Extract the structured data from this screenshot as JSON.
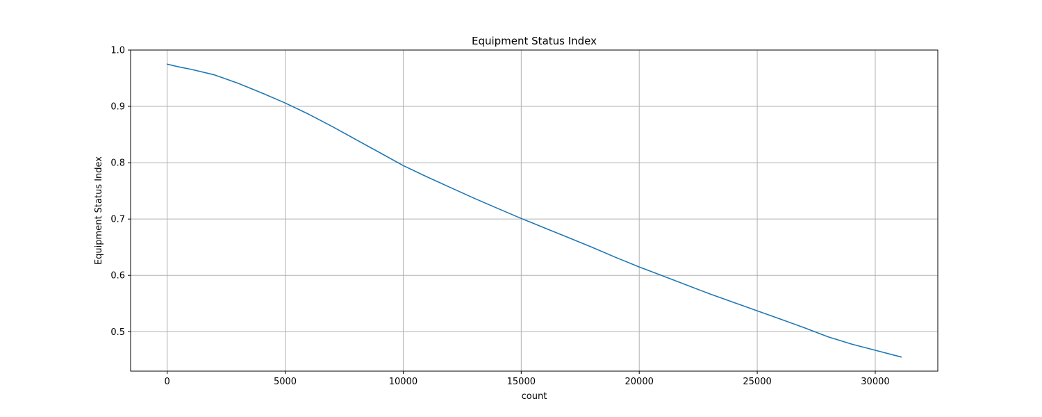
{
  "chart_data": {
    "type": "line",
    "title": "Equipment Status Index",
    "xlabel": "count",
    "ylabel": "Equipment Status Index",
    "xlim": [
      -1550,
      32650
    ],
    "ylim": [
      0.43,
      1.0
    ],
    "xticks": [
      0,
      5000,
      10000,
      15000,
      20000,
      25000,
      30000
    ],
    "yticks": [
      0.5,
      0.6,
      0.7,
      0.8,
      0.9,
      1.0
    ],
    "xtick_labels": [
      "0",
      "5000",
      "10000",
      "15000",
      "20000",
      "25000",
      "30000"
    ],
    "ytick_labels": [
      "0.5",
      "0.6",
      "0.7",
      "0.8",
      "0.9",
      "1.0"
    ],
    "grid": true,
    "series_color": "#1f77b4",
    "series": [
      {
        "x": [
          0,
          500,
          1000,
          2000,
          3000,
          4000,
          5000,
          6000,
          7000,
          8000,
          9000,
          10000,
          11000,
          12000,
          13000,
          14000,
          15000,
          16000,
          17000,
          18000,
          19000,
          20000,
          21000,
          22000,
          23000,
          24000,
          25000,
          26000,
          27000,
          28000,
          29000,
          30000,
          31100
        ],
        "y": [
          0.975,
          0.97,
          0.966,
          0.956,
          0.941,
          0.924,
          0.906,
          0.886,
          0.864,
          0.841,
          0.818,
          0.795,
          0.775,
          0.756,
          0.737,
          0.719,
          0.701,
          0.684,
          0.667,
          0.65,
          0.632,
          0.615,
          0.599,
          0.583,
          0.567,
          0.552,
          0.537,
          0.522,
          0.507,
          0.491,
          0.478,
          0.467,
          0.455
        ]
      }
    ]
  }
}
